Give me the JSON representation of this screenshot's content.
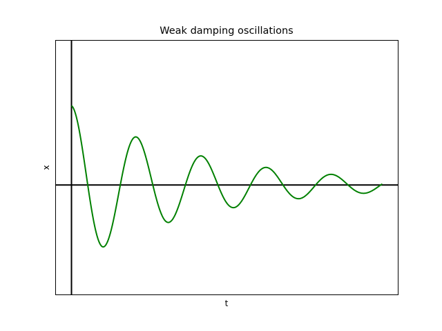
{
  "chart_data": {
    "type": "line",
    "title": "Weak damping oscillations",
    "xlabel": "t",
    "ylabel": "x",
    "xlim": [
      -0.3,
      6.3
    ],
    "ylim": [
      -1.38,
      1.82
    ],
    "ticks_shown": false,
    "grid": false,
    "reference_lines": [
      {
        "axis": "x",
        "value": 0,
        "color": "#000000"
      },
      {
        "axis": "y",
        "value": 0,
        "color": "#000000"
      }
    ],
    "series": [
      {
        "color": "#008000",
        "function": "exp(-0.4*t)*cos(5*t)",
        "t_range": [
          0,
          6
        ],
        "x": [
          0,
          0.1,
          0.2,
          0.3,
          0.4,
          0.5,
          0.628,
          0.7,
          0.8,
          0.9,
          1.0,
          1.1,
          1.257,
          1.4,
          1.5,
          1.6,
          1.7,
          1.885,
          2.0,
          2.1,
          2.2,
          2.3,
          2.513,
          2.6,
          2.7,
          2.8,
          3.0,
          3.142,
          3.3,
          3.4,
          3.5,
          3.6,
          3.77,
          3.9,
          4.0,
          4.2,
          4.398,
          4.5,
          4.6,
          4.8,
          5.027,
          5.2,
          5.4,
          5.655,
          5.8,
          6.0
        ],
        "y": [
          1.0,
          0.84,
          0.5,
          0.06,
          -0.35,
          -0.66,
          -0.78,
          -0.71,
          -0.47,
          -0.15,
          0.19,
          0.46,
          0.61,
          0.43,
          0.19,
          -0.07,
          -0.3,
          -0.47,
          -0.38,
          -0.21,
          0.0,
          0.19,
          0.37,
          0.31,
          0.19,
          0.05,
          -0.23,
          -0.28,
          -0.18,
          -0.08,
          0.04,
          0.15,
          0.22,
          0.16,
          0.08,
          -0.11,
          -0.17,
          -0.13,
          -0.05,
          0.08,
          0.13,
          0.09,
          -0.05,
          -0.1,
          -0.07,
          0.09
        ]
      }
    ]
  }
}
